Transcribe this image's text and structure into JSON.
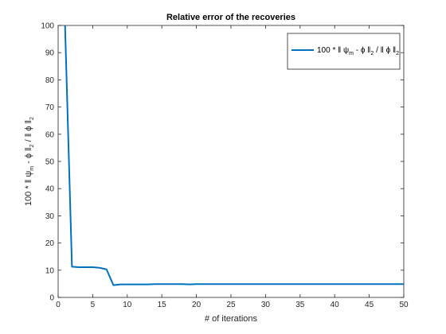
{
  "chart_data": {
    "type": "line",
    "title": "Relative error of the recoveries",
    "xlabel": "# of iterations",
    "ylabel": {
      "main": "100 * ‖ ψ",
      "sub1": "m",
      "mid": " - ϕ ‖",
      "sub2": "2",
      "tail": " / ‖ ϕ ‖",
      "sub3": "2"
    },
    "xlim": [
      0,
      50
    ],
    "ylim": [
      0,
      100
    ],
    "xticks": [
      0,
      5,
      10,
      15,
      20,
      25,
      30,
      35,
      40,
      45,
      50
    ],
    "yticks": [
      0,
      10,
      20,
      30,
      40,
      50,
      60,
      70,
      80,
      90,
      100
    ],
    "grid": false,
    "legend_position": "top-right",
    "colors": {
      "series": "#0072bd",
      "axes": "#262626"
    },
    "series": [
      {
        "name": {
          "main": "100 * ‖ ψ",
          "sub1": "m",
          "mid": " - ϕ ‖",
          "sub2": "2",
          "tail": " / ‖ ϕ ‖",
          "sub3": "2"
        },
        "x": [
          1,
          2,
          3,
          4,
          5,
          6,
          7,
          8,
          9,
          10,
          11,
          12,
          13,
          14,
          15,
          16,
          17,
          18,
          19,
          20,
          21,
          22,
          23,
          24,
          25,
          26,
          27,
          28,
          29,
          30,
          31,
          32,
          33,
          34,
          35,
          36,
          37,
          38,
          39,
          40,
          41,
          42,
          43,
          44,
          45,
          46,
          47,
          48,
          49,
          50
        ],
        "y": [
          100,
          11.3,
          11.1,
          11.1,
          11.1,
          10.9,
          10.3,
          4.5,
          4.8,
          4.8,
          4.8,
          4.8,
          4.8,
          4.9,
          4.9,
          4.9,
          4.9,
          4.9,
          4.8,
          4.9,
          4.9,
          4.9,
          4.9,
          4.9,
          4.9,
          4.9,
          4.9,
          4.9,
          4.9,
          4.9,
          4.9,
          4.9,
          4.9,
          4.9,
          4.9,
          4.9,
          4.9,
          4.9,
          4.9,
          4.9,
          4.9,
          4.9,
          4.9,
          4.9,
          4.9,
          4.9,
          4.9,
          4.9,
          4.9,
          4.9
        ]
      }
    ]
  }
}
